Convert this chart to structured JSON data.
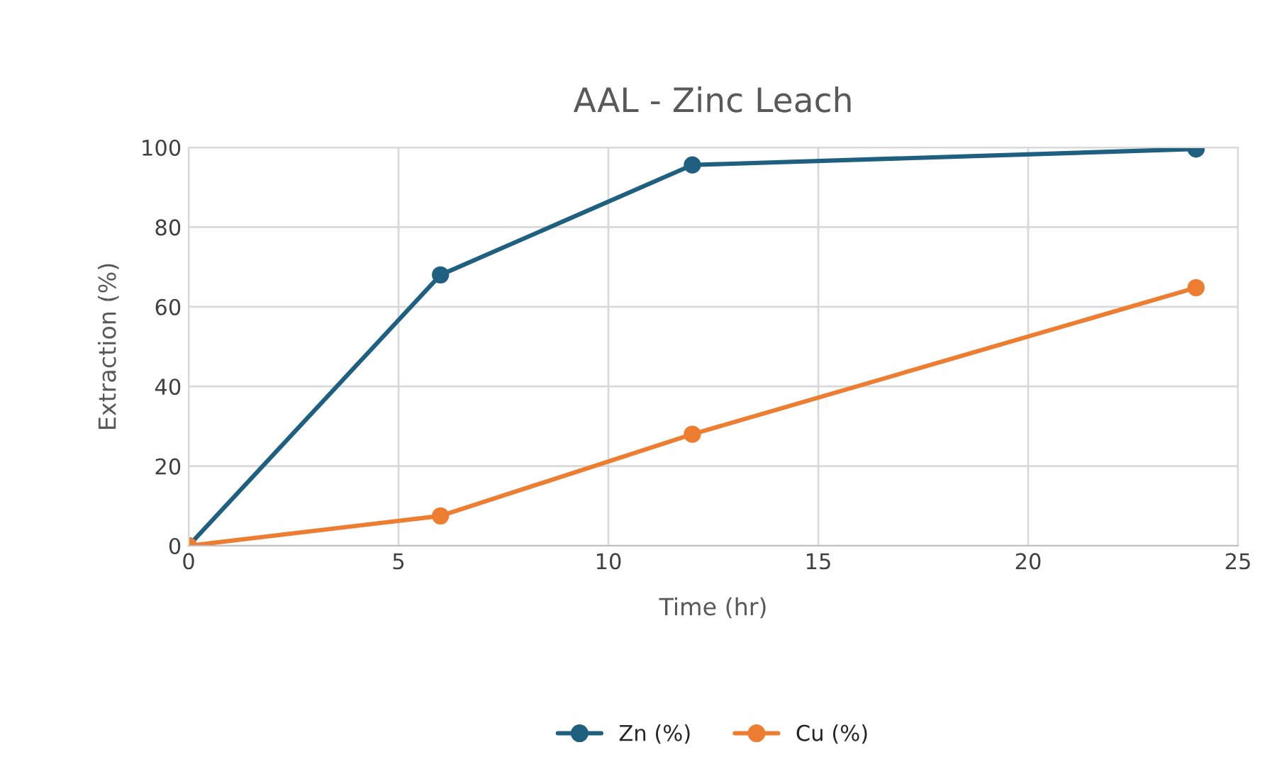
{
  "chart_data": {
    "type": "line",
    "title": "AAL - Zinc Leach",
    "xlabel": "Time (hr)",
    "ylabel": "Extraction (%)",
    "x": [
      0,
      6,
      12,
      24
    ],
    "series": [
      {
        "name": "Zn (%)",
        "color": "#1f5f7f",
        "values": [
          0,
          68,
          95.6,
          99.6
        ]
      },
      {
        "name": "Cu (%)",
        "color": "#ed7d31",
        "values": [
          0,
          7.5,
          28,
          64.8
        ]
      }
    ],
    "xlim": [
      0,
      25
    ],
    "xticks": [
      0,
      5,
      10,
      15,
      20,
      25
    ],
    "ylim": [
      0,
      100
    ],
    "yticks": [
      0,
      20,
      40,
      60,
      80,
      100
    ],
    "grid": true,
    "legend": "bottom",
    "marker": "circle",
    "line_style": "solid"
  }
}
